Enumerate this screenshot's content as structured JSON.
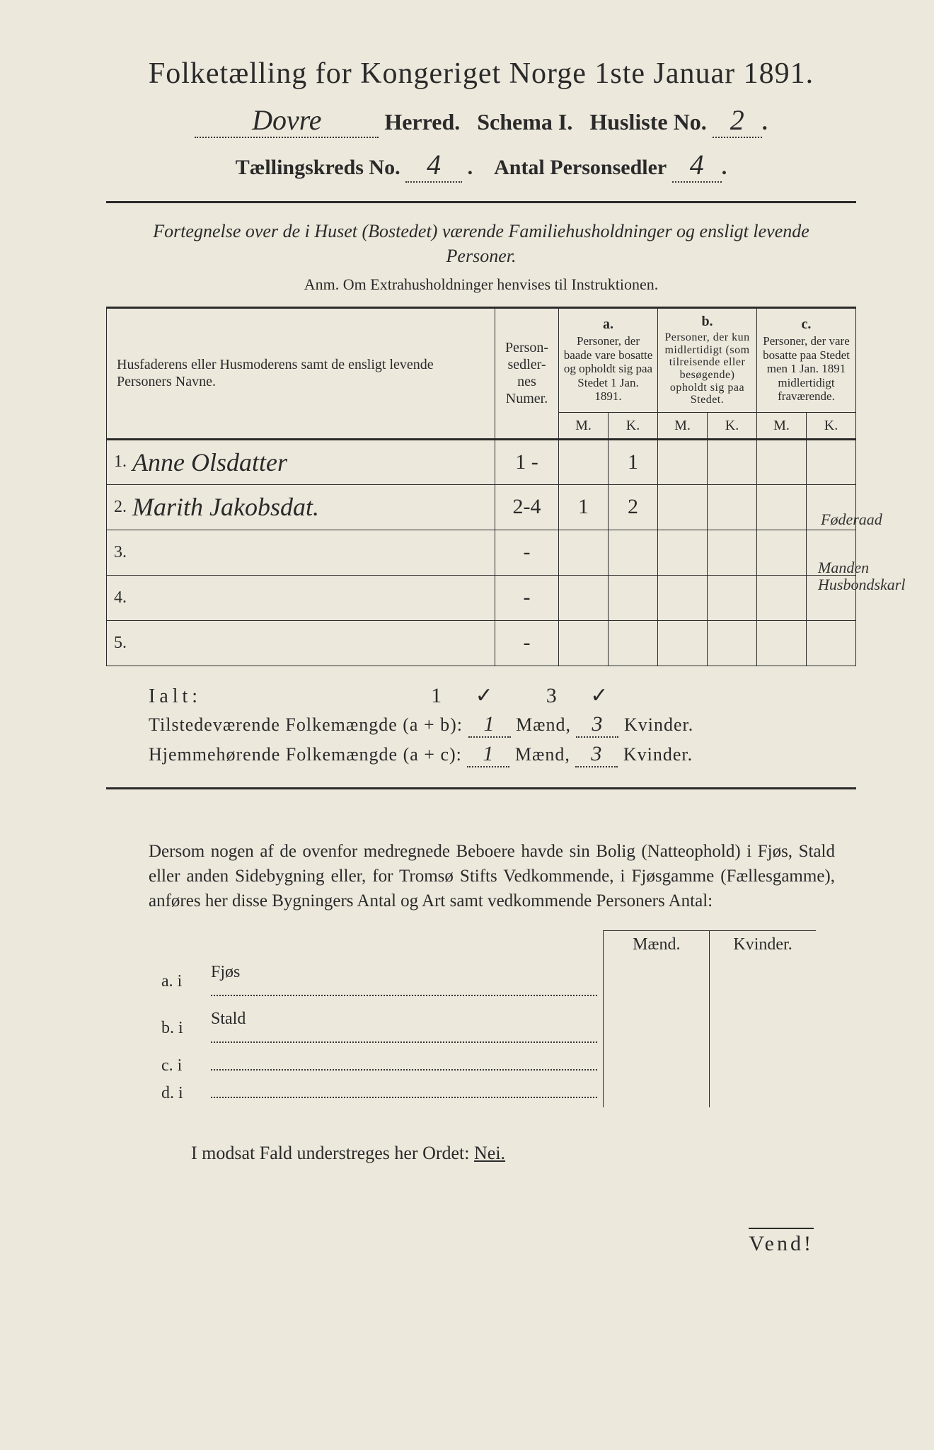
{
  "title": "Folketælling for Kongeriget Norge 1ste Januar 1891.",
  "herred_name": "Dovre",
  "herred_label": "Herred.",
  "schema_label": "Schema I.",
  "husliste_label": "Husliste No.",
  "husliste_no": "2",
  "kreds_label": "Tællingskreds No.",
  "kreds_no": "4",
  "antal_label": "Antal Personsedler",
  "antal_val": "4",
  "fortegnelse": "Fortegnelse over de i Huset (Bostedet) værende Familiehusholdninger og ensligt levende Personer.",
  "anm": "Anm. Om Extrahusholdninger henvises til Instruktionen.",
  "col_names": "Husfaderens eller Husmoderens samt de ensligt levende Personers Navne.",
  "col_nums": "Person-\nsedler-\nnes\nNumer.",
  "col_a_label": "a.",
  "col_a": "Personer, der baade vare bosatte og opholdt sig paa Stedet 1 Jan. 1891.",
  "col_b_label": "b.",
  "col_b": "Personer, der kun midlertidigt (som tilreisende eller besøgende) opholdt sig paa Stedet.",
  "col_c_label": "c.",
  "col_c": "Personer, der vare bosatte paa Stedet men 1 Jan. 1891 midlertidigt fraværende.",
  "mk_m": "M.",
  "mk_k": "K.",
  "rows": [
    {
      "n": "1.",
      "name": "Anne Olsdatter",
      "num": "1 -",
      "am": "",
      "ak": "1",
      "bm": "",
      "bk": "",
      "cm": "",
      "ck": "",
      "note": "Føderaad"
    },
    {
      "n": "2.",
      "name": "Marith Jakobsdat.",
      "num": "2-4",
      "am": "1",
      "ak": "2",
      "bm": "",
      "bk": "",
      "cm": "",
      "ck": "",
      "note": "Manden Husbondskarl"
    },
    {
      "n": "3.",
      "name": "",
      "num": "-",
      "am": "",
      "ak": "",
      "bm": "",
      "bk": "",
      "cm": "",
      "ck": "",
      "note": ""
    },
    {
      "n": "4.",
      "name": "",
      "num": "-",
      "am": "",
      "ak": "",
      "bm": "",
      "bk": "",
      "cm": "",
      "ck": "",
      "note": ""
    },
    {
      "n": "5.",
      "name": "",
      "num": "-",
      "am": "",
      "ak": "",
      "bm": "",
      "bk": "",
      "cm": "",
      "ck": "",
      "note": ""
    }
  ],
  "ialt_label": "Ialt:",
  "ialt_m": "1 ✓",
  "ialt_k": "3 ✓",
  "til_label": "Tilstedeværende Folkemængde (a + b):",
  "til_m": "1",
  "til_k": "3",
  "hjem_label": "Hjemmehørende Folkemængde (a + c):",
  "hjem_m": "1",
  "hjem_k": "3",
  "maend": "Mænd,",
  "kvinder": "Kvinder.",
  "para": "Dersom nogen af de ovenfor medregnede Beboere havde sin Bolig (Natteophold) i Fjøs, Stald eller anden Sidebygning eller, for Tromsø Stifts Vedkommende, i Fjøsgamme (Fællesgamme), anføres her disse Bygningers Antal og Art samt vedkommende Personers Antal:",
  "bldg_head_m": "Mænd.",
  "bldg_head_k": "Kvinder.",
  "bldg": [
    {
      "l": "a.  i",
      "t": "Fjøs"
    },
    {
      "l": "b.  i",
      "t": "Stald"
    },
    {
      "l": "c.  i",
      "t": ""
    },
    {
      "l": "d.  i",
      "t": ""
    }
  ],
  "nei_line": "I modsat Fald understreges her Ordet:",
  "nei": "Nei.",
  "vend": "Vend!"
}
